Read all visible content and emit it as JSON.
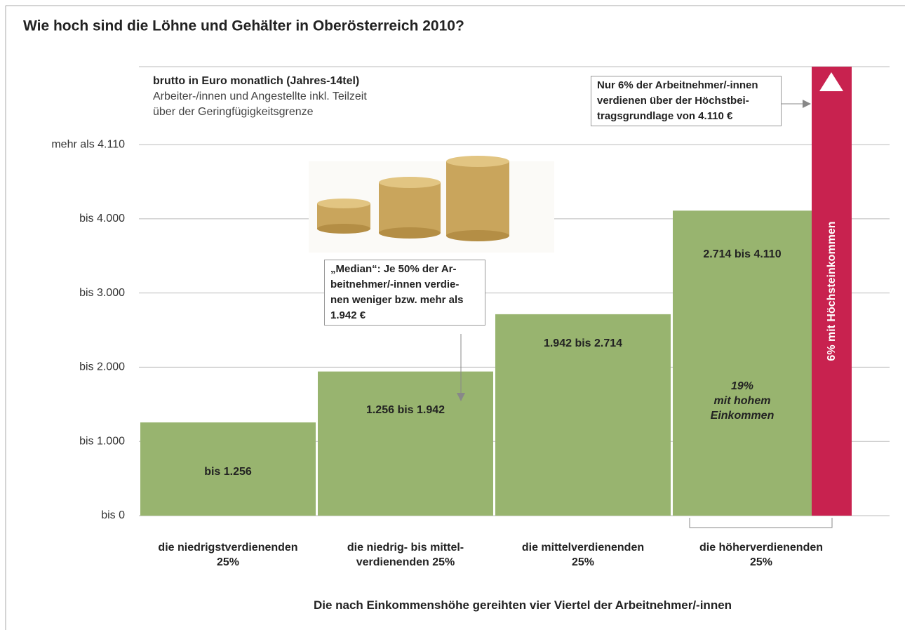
{
  "chart_data": {
    "type": "bar",
    "title": "Wie hoch sind die Löhne und Gehälter in Oberösterreich 2010?",
    "subtitle": "brutto in Euro monatlich (Jahres-14tel)",
    "note": "Arbeiter-/innen und Angestellte inkl. Teilzeit\nüber der Geringfügigkeitsgrenze",
    "x_label": "Die nach Einkommenshöhe gereihten vier Viertel der Arbeitnehmer/-innen",
    "categories": [
      "die niedrigstverdienenden\n25%",
      "die niedrig- bis mittel-\nverdienenden 25%",
      "die mittelverdienenden\n25%",
      "die höherverdienenden\n25%"
    ],
    "values": [
      1256,
      1942,
      2714,
      4110
    ],
    "value_labels": [
      "bis 1.256",
      "1.256 bis 1.942",
      "1.942 bis 2.714",
      "2.714 bis 4.110"
    ],
    "color": "#98b46f",
    "ylim": [
      0,
      6050
    ],
    "yticks": [
      {
        "value": 0,
        "label": "bis 0"
      },
      {
        "value": 1000,
        "label": "bis 1.000"
      },
      {
        "value": 2000,
        "label": "bis 2.000"
      },
      {
        "value": 3000,
        "label": "bis 3.000"
      },
      {
        "value": 4000,
        "label": "bis 4.000"
      },
      {
        "value": 5000,
        "label": "mehr als 4.110"
      }
    ],
    "grid": true,
    "annotations": [
      {
        "text": "„Median“: Je 50% der Ar-\nbeitnehmer/-innen verdie-\nnen weniger bzw. mehr als\n1.942 €"
      },
      {
        "text": "Nur 6% der Arbeitnehmer/-innen\nverdienen über der Höchstbei-\ntragsgrundlage von 4.110 €"
      },
      {
        "text": "19%\nmit hohem\nEinkommen"
      },
      {
        "text": "6% mit Höchsteinkommen",
        "color": "#c8224f"
      }
    ]
  }
}
